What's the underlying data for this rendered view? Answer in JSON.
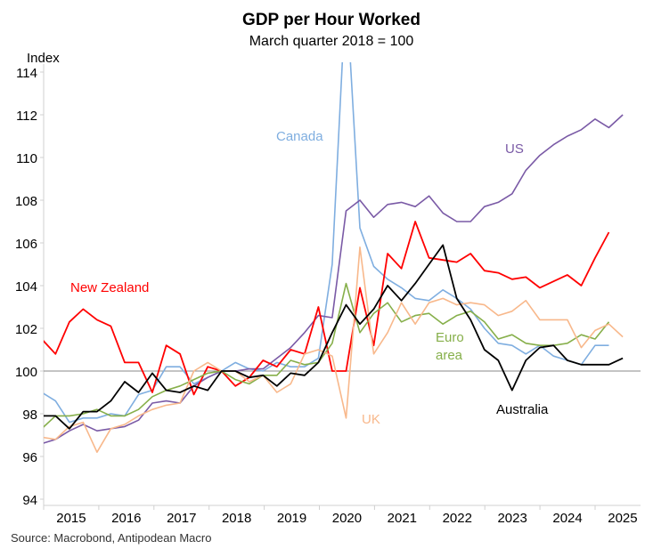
{
  "chart_data": {
    "type": "line",
    "title": "GDP per Hour Worked",
    "subtitle": "March quarter 2018 = 100",
    "ylabel": "Index",
    "xlabel": "",
    "source": "Source: Macrobond, Antipodean Macro",
    "ylim": [
      94,
      114
    ],
    "yticks": [
      94,
      96,
      98,
      100,
      102,
      104,
      106,
      108,
      110,
      112,
      114
    ],
    "xtick_labels": [
      "2015",
      "2016",
      "2017",
      "2018",
      "2019",
      "2020",
      "2021",
      "2022",
      "2023",
      "2024",
      "2025"
    ],
    "x_start": "2014 Q4",
    "frequency": "quarterly",
    "reference_line": 100,
    "grid": false,
    "series": [
      {
        "name": "Canada",
        "label": "Canada",
        "color": "#7FAEE0",
        "values": [
          99.0,
          98.6,
          97.6,
          97.8,
          97.8,
          98.0,
          97.9,
          98.9,
          99.1,
          100.2,
          100.2,
          99.4,
          99.7,
          100.0,
          100.4,
          100.1,
          100.0,
          100.4,
          100.2,
          100.2,
          100.6,
          105.0,
          118.0,
          106.7,
          104.9,
          104.3,
          103.9,
          103.4,
          103.3,
          103.8,
          103.4,
          102.9,
          102.0,
          101.3,
          101.2,
          100.8,
          101.2,
          100.7,
          100.5,
          100.3,
          101.2,
          101.2,
          null
        ]
      },
      {
        "name": "US",
        "label": "US",
        "color": "#7A5AA6",
        "values": [
          96.6,
          96.8,
          97.2,
          97.5,
          97.2,
          97.3,
          97.4,
          97.7,
          98.5,
          98.6,
          98.5,
          99.3,
          99.7,
          100.0,
          100.0,
          100.1,
          100.1,
          100.6,
          101.1,
          101.8,
          102.6,
          102.5,
          107.5,
          108.0,
          107.2,
          107.8,
          107.9,
          107.7,
          108.2,
          107.4,
          107.0,
          107.0,
          107.7,
          107.9,
          108.3,
          109.4,
          110.1,
          110.6,
          111.0,
          111.3,
          111.8,
          111.4,
          112.0
        ]
      },
      {
        "name": "New Zealand",
        "label": "New Zealand",
        "color": "#FF0000",
        "values": [
          101.5,
          100.8,
          102.3,
          102.9,
          102.4,
          102.1,
          100.4,
          100.4,
          99.0,
          101.2,
          100.8,
          98.9,
          100.2,
          100.0,
          99.3,
          99.7,
          100.5,
          100.2,
          101.0,
          100.8,
          103.0,
          100.0,
          100.0,
          103.9,
          101.2,
          105.5,
          104.8,
          107.0,
          105.3,
          105.2,
          105.1,
          105.5,
          104.7,
          104.6,
          104.3,
          104.4,
          103.9,
          104.2,
          104.5,
          104.0,
          105.3,
          106.5,
          null
        ]
      },
      {
        "name": "Euro area",
        "label": "Euro area",
        "color": "#86AF4A",
        "values": [
          97.3,
          97.9,
          97.9,
          98.0,
          98.2,
          97.9,
          97.9,
          98.2,
          98.8,
          99.1,
          99.3,
          99.6,
          99.9,
          100.0,
          99.6,
          99.4,
          99.8,
          99.8,
          100.5,
          100.3,
          100.4,
          101.3,
          104.1,
          101.8,
          102.7,
          103.2,
          102.3,
          102.6,
          102.7,
          102.2,
          102.6,
          102.8,
          102.3,
          101.5,
          101.7,
          101.3,
          101.2,
          101.2,
          101.3,
          101.7,
          101.5,
          102.3,
          null
        ]
      },
      {
        "name": "UK",
        "label": "UK",
        "color": "#F8B88B",
        "values": [
          96.9,
          96.8,
          97.4,
          97.6,
          96.2,
          97.3,
          97.5,
          97.9,
          98.2,
          98.4,
          98.5,
          100.0,
          100.4,
          100.0,
          100.0,
          99.5,
          99.8,
          99.0,
          99.4,
          100.8,
          101.0,
          100.7,
          97.8,
          105.8,
          100.8,
          101.8,
          103.2,
          102.2,
          103.2,
          103.4,
          103.1,
          103.2,
          103.1,
          102.6,
          102.8,
          103.3,
          102.4,
          102.4,
          102.4,
          101.1,
          101.9,
          102.2,
          101.6
        ]
      },
      {
        "name": "Australia",
        "label": "Australia",
        "color": "#000000",
        "values": [
          97.9,
          97.9,
          97.3,
          98.1,
          98.1,
          98.6,
          99.5,
          99.0,
          99.9,
          99.1,
          99.0,
          99.3,
          99.1,
          100.0,
          100.0,
          99.7,
          99.8,
          99.3,
          99.9,
          99.8,
          100.4,
          101.8,
          103.1,
          102.2,
          102.9,
          104.0,
          103.3,
          104.1,
          105.0,
          105.9,
          103.4,
          102.4,
          101.0,
          100.5,
          99.1,
          100.5,
          101.1,
          101.2,
          100.5,
          100.3,
          100.3,
          100.3,
          100.6
        ]
      }
    ]
  }
}
